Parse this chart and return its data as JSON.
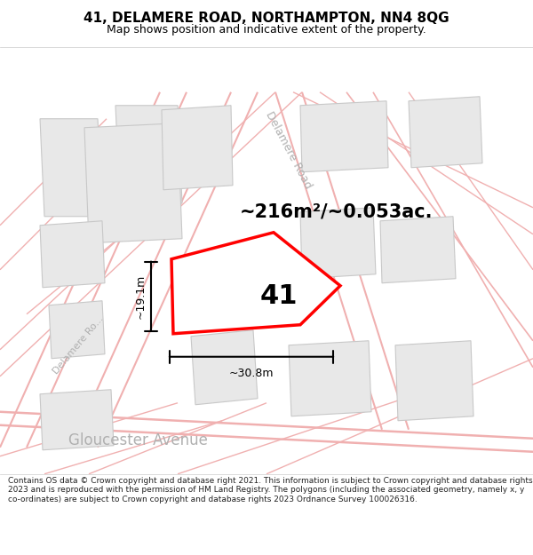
{
  "title": "41, DELAMERE ROAD, NORTHAMPTON, NN4 8QG",
  "subtitle": "Map shows position and indicative extent of the property.",
  "area_text": "~216m²/~0.053ac.",
  "property_number": "41",
  "dim_width": "~30.8m",
  "dim_height": "~19.1m",
  "footer": "Contains OS data © Crown copyright and database right 2021. This information is subject to Crown copyright and database rights 2023 and is reproduced with the permission of HM Land Registry. The polygons (including the associated geometry, namely x, y co-ordinates) are subject to Crown copyright and database rights 2023 Ordnance Survey 100026316.",
  "bg_color": "#ffffff",
  "map_bg": "#ffffff",
  "road_line_color": "#f0b0b0",
  "road_line_color2": "#e8c0c0",
  "building_color": "#e8e8e8",
  "building_edge": "#c8c8c8",
  "property_fill": "#ffffff",
  "property_edge": "#ff0000",
  "street_text_color": "#b0b0b0",
  "title_color": "#000000",
  "footer_color": "#222222",
  "title_fontsize": 11,
  "subtitle_fontsize": 9,
  "area_fontsize": 15,
  "property_num_fontsize": 22,
  "street_fontsize": 9,
  "gloucester_fontsize": 12,
  "footer_fontsize": 6.5
}
